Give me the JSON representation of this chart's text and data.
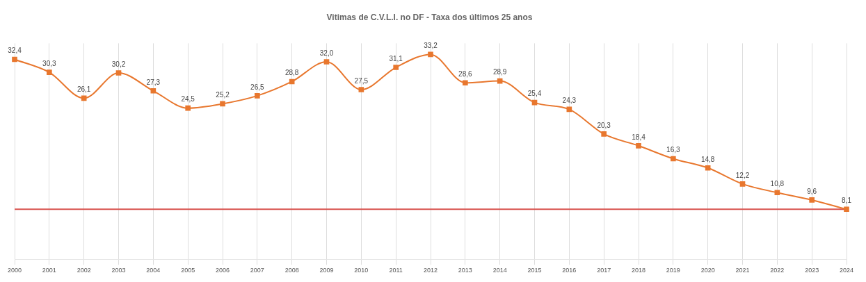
{
  "chart_data": {
    "type": "line",
    "title": "Vitimas de C.V.L.I. no DF - Taxa dos últimos 25 anos",
    "categories": [
      "2000",
      "2001",
      "2002",
      "2003",
      "2004",
      "2005",
      "2006",
      "2007",
      "2008",
      "2009",
      "2010",
      "2011",
      "2012",
      "2013",
      "2014",
      "2015",
      "2016",
      "2017",
      "2018",
      "2019",
      "2020",
      "2021",
      "2022",
      "2023",
      "2024"
    ],
    "series": [
      {
        "color": "#e8772e",
        "values": [
          32.4,
          30.3,
          26.1,
          30.2,
          27.3,
          24.5,
          25.2,
          26.5,
          28.8,
          32.0,
          27.5,
          31.1,
          33.2,
          28.6,
          28.9,
          25.4,
          24.3,
          20.3,
          18.4,
          16.3,
          14.8,
          12.2,
          10.8,
          9.6,
          8.1
        ],
        "value_labels": [
          "32,4",
          "30,3",
          "26,1",
          "30,2",
          "27,3",
          "24,5",
          "25,2",
          "26,5",
          "28,8",
          "32,0",
          "27,5",
          "31,1",
          "33,2",
          "28,6",
          "28,9",
          "25,4",
          "24,3",
          "20,3",
          "18,4",
          "16,3",
          "14,8",
          "12,2",
          "10,8",
          "9,6",
          "8,1"
        ]
      }
    ],
    "ylim": [
      0,
      35
    ],
    "tick_labels": "x",
    "grid": "x",
    "marker": "square",
    "legend": false,
    "ref_lines": [
      {
        "axis": "y",
        "value": 8.1,
        "color": "#d9534f"
      }
    ]
  }
}
